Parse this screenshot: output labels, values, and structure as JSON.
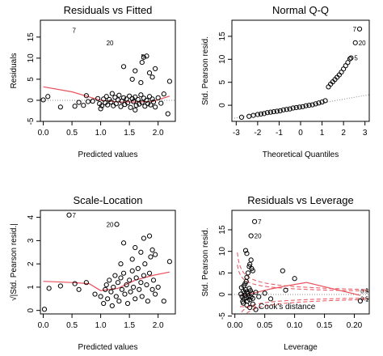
{
  "chart_data": [
    {
      "type": "scatter",
      "title": "Residuals vs Fitted",
      "xlabel": "Predicted values",
      "ylabel": "Residuals",
      "xlim": [
        -0.05,
        2.3
      ],
      "ylim": [
        -5,
        19
      ],
      "xticks": [
        0.0,
        0.5,
        1.0,
        1.5,
        2.0
      ],
      "xtick_labels": [
        "0.0",
        "0.5",
        "1.0",
        "1.5",
        "2.0"
      ],
      "yticks": [
        -5,
        0,
        5,
        10,
        15
      ],
      "ytick_labels": [
        "-5",
        "0",
        "5",
        "10",
        "15"
      ],
      "refline": {
        "type": "h",
        "value": 0,
        "style": "dotted"
      },
      "points": [
        [
          0.0,
          0.1
        ],
        [
          0.08,
          0.9
        ],
        [
          0.3,
          -1.6
        ],
        [
          0.55,
          -1.4
        ],
        [
          0.62,
          -0.5
        ],
        [
          0.7,
          -1.2
        ],
        [
          0.75,
          1.1
        ],
        [
          0.78,
          -0.3
        ],
        [
          0.86,
          -0.2
        ],
        [
          0.95,
          0.4
        ],
        [
          0.98,
          -0.8
        ],
        [
          1.02,
          -1.3
        ],
        [
          1.05,
          0.3
        ],
        [
          1.08,
          -0.6
        ],
        [
          1.1,
          0.9
        ],
        [
          1.12,
          -1.1
        ],
        [
          1.15,
          0.2
        ],
        [
          1.18,
          -0.4
        ],
        [
          1.2,
          1.6
        ],
        [
          1.22,
          -1.3
        ],
        [
          1.25,
          0.7
        ],
        [
          1.27,
          -0.8
        ],
        [
          1.3,
          0.1
        ],
        [
          1.32,
          1.2
        ],
        [
          1.35,
          -1.5
        ],
        [
          1.37,
          -0.2
        ],
        [
          1.4,
          0.6
        ],
        [
          1.42,
          -1.0
        ],
        [
          1.45,
          0.3
        ],
        [
          1.47,
          -0.6
        ],
        [
          1.5,
          1.0
        ],
        [
          1.52,
          -1.7
        ],
        [
          1.55,
          0.4
        ],
        [
          1.57,
          -0.3
        ],
        [
          1.6,
          0.8
        ],
        [
          1.62,
          -1.2
        ],
        [
          1.65,
          0.2
        ],
        [
          1.67,
          -0.9
        ],
        [
          1.7,
          1.3
        ],
        [
          1.72,
          -0.5
        ],
        [
          1.75,
          0.5
        ],
        [
          1.77,
          -1.4
        ],
        [
          1.8,
          0.0
        ],
        [
          1.82,
          -0.8
        ],
        [
          1.85,
          0.9
        ],
        [
          1.87,
          -1.1
        ],
        [
          1.9,
          0.3
        ],
        [
          1.92,
          -0.4
        ],
        [
          1.95,
          -1.6
        ],
        [
          2.0,
          0.6
        ],
        [
          2.05,
          -0.7
        ],
        [
          2.1,
          1.5
        ],
        [
          2.2,
          4.5
        ],
        [
          2.17,
          -3.2
        ],
        [
          1.0,
          -2.0
        ],
        [
          1.6,
          -2.3
        ],
        [
          1.4,
          8.0
        ],
        [
          1.6,
          7.0
        ],
        [
          1.72,
          9.0
        ],
        [
          1.75,
          10.2
        ],
        [
          1.8,
          10.5
        ],
        [
          1.85,
          6.5
        ],
        [
          1.9,
          5.5
        ],
        [
          1.95,
          7.5
        ],
        [
          1.55,
          5.0
        ],
        [
          1.7,
          4.2
        ]
      ],
      "smooth": [
        [
          0.0,
          3.2
        ],
        [
          0.5,
          2.0
        ],
        [
          0.8,
          0.8
        ],
        [
          1.0,
          0.0
        ],
        [
          1.3,
          -0.4
        ],
        [
          1.6,
          -0.4
        ],
        [
          1.9,
          -0.3
        ],
        [
          2.2,
          1.0
        ]
      ],
      "annotations": [
        {
          "label": "7",
          "x": 0.45,
          "y": 16.6,
          "side": "right"
        },
        {
          "label": "20",
          "x": 1.28,
          "y": 13.6,
          "side": "left"
        },
        {
          "label": "5",
          "x": 1.82,
          "y": 10.4,
          "side": "left"
        }
      ]
    },
    {
      "type": "scatter",
      "title": "Normal Q-Q",
      "xlabel": "Theoretical Quantiles",
      "ylabel": "Std. Pearson resid.",
      "xlim": [
        -3.2,
        3.2
      ],
      "ylim": [
        -3.5,
        18.5
      ],
      "xticks": [
        -3,
        -2,
        -1,
        0,
        1,
        2,
        3
      ],
      "xtick_labels": [
        "-3",
        "-2",
        "-1",
        "0",
        "1",
        "2",
        "3"
      ],
      "yticks": [
        0,
        5,
        10,
        15
      ],
      "ytick_labels": [
        "0",
        "5",
        "10",
        "15"
      ],
      "refline": {
        "type": "line",
        "from": [
          -3.2,
          -2.9
        ],
        "to": [
          3.2,
          2.3
        ],
        "style": "dotted"
      },
      "points": [
        [
          -2.75,
          -2.6
        ],
        [
          -2.4,
          -2.4
        ],
        [
          -2.2,
          -2.2
        ],
        [
          -2.0,
          -2.0
        ],
        [
          -1.85,
          -1.9
        ],
        [
          -1.7,
          -1.8
        ],
        [
          -1.55,
          -1.6
        ],
        [
          -1.4,
          -1.5
        ],
        [
          -1.25,
          -1.4
        ],
        [
          -1.1,
          -1.3
        ],
        [
          -0.95,
          -1.2
        ],
        [
          -0.8,
          -1.0
        ],
        [
          -0.65,
          -0.9
        ],
        [
          -0.5,
          -0.8
        ],
        [
          -0.35,
          -0.6
        ],
        [
          -0.2,
          -0.5
        ],
        [
          -0.05,
          -0.4
        ],
        [
          0.1,
          -0.3
        ],
        [
          0.25,
          -0.1
        ],
        [
          0.4,
          0.0
        ],
        [
          0.55,
          0.1
        ],
        [
          0.7,
          0.3
        ],
        [
          0.85,
          0.5
        ],
        [
          1.0,
          0.7
        ],
        [
          1.15,
          1.0
        ],
        [
          1.3,
          4.0
        ],
        [
          1.4,
          4.6
        ],
        [
          1.5,
          5.1
        ],
        [
          1.6,
          5.6
        ],
        [
          1.7,
          6.1
        ],
        [
          1.8,
          6.6
        ],
        [
          1.9,
          7.2
        ],
        [
          2.0,
          7.9
        ],
        [
          2.1,
          8.6
        ],
        [
          2.2,
          9.3
        ],
        [
          2.3,
          10.1
        ],
        [
          2.35,
          10.3
        ],
        [
          2.55,
          13.6
        ],
        [
          2.75,
          16.6
        ]
      ],
      "annotations": [
        {
          "label": "7",
          "x": 2.75,
          "y": 16.6,
          "side": "left"
        },
        {
          "label": "20",
          "x": 2.55,
          "y": 13.6,
          "side": "right"
        },
        {
          "label": "5",
          "x": 2.35,
          "y": 10.3,
          "side": "right"
        }
      ]
    },
    {
      "type": "scatter",
      "title": "Scale-Location",
      "xlabel": "Predicted values",
      "ylabel": "√|Std. Pearson resid.|",
      "xlim": [
        -0.05,
        2.3
      ],
      "ylim": [
        -0.15,
        4.3
      ],
      "xticks": [
        0.0,
        0.5,
        1.0,
        1.5,
        2.0
      ],
      "xtick_labels": [
        "0.0",
        "0.5",
        "1.0",
        "1.5",
        "2.0"
      ],
      "yticks": [
        0,
        1,
        2,
        3,
        4
      ],
      "ytick_labels": [
        "0",
        "1",
        "2",
        "3",
        "4"
      ],
      "points": [
        [
          0.02,
          0.05
        ],
        [
          0.1,
          0.95
        ],
        [
          0.3,
          1.05
        ],
        [
          0.55,
          1.15
        ],
        [
          0.62,
          0.9
        ],
        [
          0.75,
          1.2
        ],
        [
          0.9,
          0.7
        ],
        [
          1.0,
          0.6
        ],
        [
          1.05,
          0.3
        ],
        [
          1.08,
          0.9
        ],
        [
          1.1,
          1.1
        ],
        [
          1.12,
          0.5
        ],
        [
          1.15,
          1.3
        ],
        [
          1.18,
          0.8
        ],
        [
          1.2,
          0.2
        ],
        [
          1.22,
          1.0
        ],
        [
          1.25,
          1.5
        ],
        [
          1.27,
          0.6
        ],
        [
          1.3,
          1.2
        ],
        [
          1.32,
          0.4
        ],
        [
          1.35,
          1.4
        ],
        [
          1.37,
          0.9
        ],
        [
          1.4,
          1.6
        ],
        [
          1.42,
          0.7
        ],
        [
          1.45,
          1.1
        ],
        [
          1.47,
          0.3
        ],
        [
          1.5,
          1.3
        ],
        [
          1.52,
          0.8
        ],
        [
          1.55,
          1.7
        ],
        [
          1.57,
          1.0
        ],
        [
          1.6,
          0.5
        ],
        [
          1.62,
          1.4
        ],
        [
          1.65,
          1.8
        ],
        [
          1.67,
          0.9
        ],
        [
          1.7,
          1.2
        ],
        [
          1.72,
          0.6
        ],
        [
          1.75,
          1.5
        ],
        [
          1.77,
          2.0
        ],
        [
          1.8,
          1.1
        ],
        [
          1.82,
          0.4
        ],
        [
          1.85,
          1.6
        ],
        [
          1.87,
          2.3
        ],
        [
          1.9,
          0.9
        ],
        [
          1.92,
          1.3
        ],
        [
          1.95,
          0.7
        ],
        [
          2.0,
          1.0
        ],
        [
          2.1,
          0.4
        ],
        [
          2.2,
          2.1
        ],
        [
          1.4,
          2.9
        ],
        [
          1.6,
          2.7
        ],
        [
          1.75,
          3.1
        ],
        [
          1.85,
          3.2
        ],
        [
          1.9,
          2.6
        ],
        [
          1.95,
          2.4
        ],
        [
          1.55,
          2.2
        ],
        [
          1.35,
          2.0
        ],
        [
          1.7,
          2.5
        ],
        [
          0.45,
          4.1
        ],
        [
          1.28,
          3.7
        ]
      ],
      "smooth": [
        [
          0.0,
          1.25
        ],
        [
          0.5,
          1.2
        ],
        [
          0.8,
          1.15
        ],
        [
          1.0,
          0.85
        ],
        [
          1.3,
          0.95
        ],
        [
          1.6,
          1.3
        ],
        [
          1.9,
          1.5
        ],
        [
          2.2,
          1.65
        ]
      ],
      "annotations": [
        {
          "label": "7",
          "x": 0.45,
          "y": 4.1,
          "side": "right"
        },
        {
          "label": "20",
          "x": 1.28,
          "y": 3.7,
          "side": "left"
        }
      ]
    },
    {
      "type": "scatter",
      "title": "Residuals vs Leverage",
      "xlabel": "Leverage",
      "ylabel": "Std. Pearson resid.",
      "xlim": [
        -0.005,
        0.225
      ],
      "ylim": [
        -4.5,
        19.5
      ],
      "xticks": [
        0.0,
        0.05,
        0.1,
        0.15,
        0.2
      ],
      "xtick_labels": [
        "0.00",
        "0.05",
        "0.10",
        "0.15",
        "0.20"
      ],
      "yticks": [
        -5,
        0,
        5,
        10,
        15
      ],
      "ytick_labels": [
        "-5",
        "0",
        "5",
        "10",
        "15"
      ],
      "refline": {
        "type": "h",
        "value": 0,
        "style": "dotted"
      },
      "cook_label": "Cook's distance",
      "cook_levels": [
        {
          "label": "0.5",
          "k": 0.19
        },
        {
          "label": "1",
          "k": 0.38
        }
      ],
      "points": [
        [
          0.01,
          0.1
        ],
        [
          0.012,
          -0.5
        ],
        [
          0.014,
          0.8
        ],
        [
          0.015,
          -1.0
        ],
        [
          0.016,
          0.4
        ],
        [
          0.017,
          -0.2
        ],
        [
          0.018,
          1.1
        ],
        [
          0.019,
          -0.8
        ],
        [
          0.02,
          0.6
        ],
        [
          0.021,
          -1.5
        ],
        [
          0.022,
          0.2
        ],
        [
          0.023,
          -0.4
        ],
        [
          0.024,
          1.4
        ],
        [
          0.025,
          -1.2
        ],
        [
          0.026,
          0.9
        ],
        [
          0.027,
          -0.6
        ],
        [
          0.028,
          0.3
        ],
        [
          0.03,
          -0.9
        ],
        [
          0.011,
          1.6
        ],
        [
          0.013,
          -1.6
        ],
        [
          0.015,
          2.0
        ],
        [
          0.017,
          2.5
        ],
        [
          0.019,
          3.0
        ],
        [
          0.02,
          4.0
        ],
        [
          0.022,
          5.0
        ],
        [
          0.024,
          6.5
        ],
        [
          0.025,
          7.0
        ],
        [
          0.027,
          8.0
        ],
        [
          0.02,
          9.5
        ],
        [
          0.018,
          10.2
        ],
        [
          0.03,
          5.5
        ],
        [
          0.028,
          6.0
        ],
        [
          0.035,
          0.5
        ],
        [
          0.04,
          -0.5
        ],
        [
          0.05,
          0.3
        ],
        [
          0.06,
          -1.0
        ],
        [
          0.08,
          5.5
        ],
        [
          0.085,
          1.0
        ],
        [
          0.1,
          3.7
        ],
        [
          0.21,
          -1.5
        ],
        [
          0.014,
          -2.0
        ],
        [
          0.02,
          -2.5
        ],
        [
          0.025,
          -3.0
        ],
        [
          0.03,
          -2.2
        ],
        [
          0.035,
          -3.5
        ],
        [
          0.033,
          16.9
        ],
        [
          0.027,
          13.6
        ]
      ],
      "smooth": [
        [
          0.01,
          -0.3
        ],
        [
          0.03,
          0.3
        ],
        [
          0.06,
          1.3
        ],
        [
          0.09,
          2.1
        ],
        [
          0.12,
          2.8
        ],
        [
          0.15,
          1.8
        ],
        [
          0.18,
          0.8
        ],
        [
          0.21,
          -0.2
        ]
      ],
      "annotations": [
        {
          "label": "7",
          "x": 0.033,
          "y": 16.9,
          "side": "right"
        },
        {
          "label": "20",
          "x": 0.027,
          "y": 13.6,
          "side": "right"
        }
      ]
    }
  ]
}
